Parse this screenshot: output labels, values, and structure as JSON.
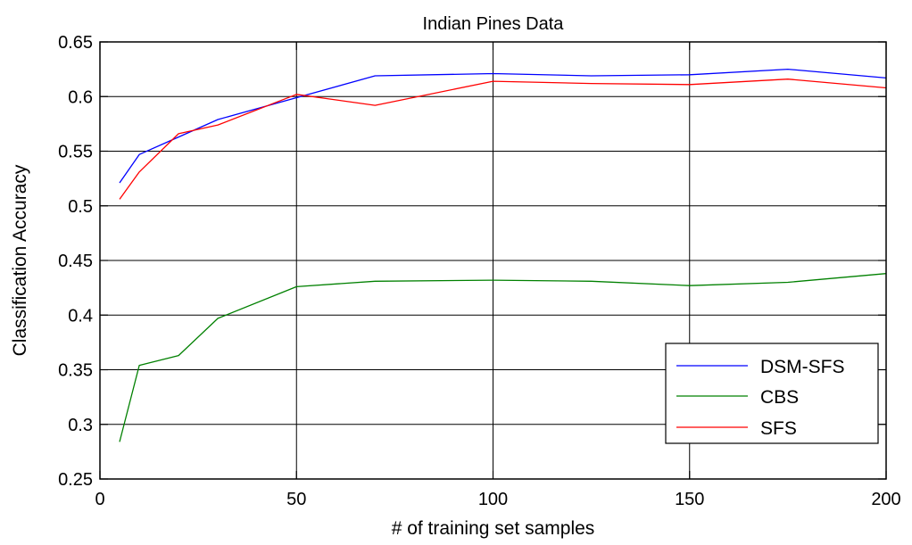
{
  "chart_data": {
    "type": "line",
    "title": "Indian Pines Data",
    "xlabel": "# of training set samples",
    "ylabel": "Classification Accuracy",
    "xlim": [
      0,
      200
    ],
    "ylim": [
      0.25,
      0.65
    ],
    "xticks": [
      0,
      50,
      100,
      150,
      200
    ],
    "yticks": [
      0.25,
      0.3,
      0.35,
      0.4,
      0.45,
      0.5,
      0.55,
      0.6,
      0.65
    ],
    "ytick_labels": [
      "0.25",
      "0.3",
      "0.35",
      "0.4",
      "0.45",
      "0.5",
      "0.55",
      "0.6",
      "0.65"
    ],
    "grid": true,
    "legend_position": "bottom-right",
    "series": [
      {
        "name": "DSM-SFS",
        "color": "#0000ff",
        "x": [
          5,
          10,
          20,
          30,
          50,
          70,
          100,
          125,
          150,
          175,
          200
        ],
        "y": [
          0.521,
          0.547,
          0.563,
          0.579,
          0.599,
          0.619,
          0.621,
          0.619,
          0.62,
          0.625,
          0.617
        ]
      },
      {
        "name": "CBS",
        "color": "#008000",
        "x": [
          5,
          10,
          20,
          30,
          50,
          70,
          100,
          125,
          150,
          175,
          200
        ],
        "y": [
          0.284,
          0.354,
          0.363,
          0.397,
          0.426,
          0.431,
          0.432,
          0.431,
          0.427,
          0.43,
          0.438
        ]
      },
      {
        "name": "SFS",
        "color": "#ff0000",
        "x": [
          5,
          10,
          20,
          30,
          50,
          70,
          100,
          125,
          150,
          175,
          200
        ],
        "y": [
          0.506,
          0.531,
          0.566,
          0.574,
          0.602,
          0.592,
          0.614,
          0.612,
          0.611,
          0.616,
          0.608
        ]
      }
    ]
  }
}
